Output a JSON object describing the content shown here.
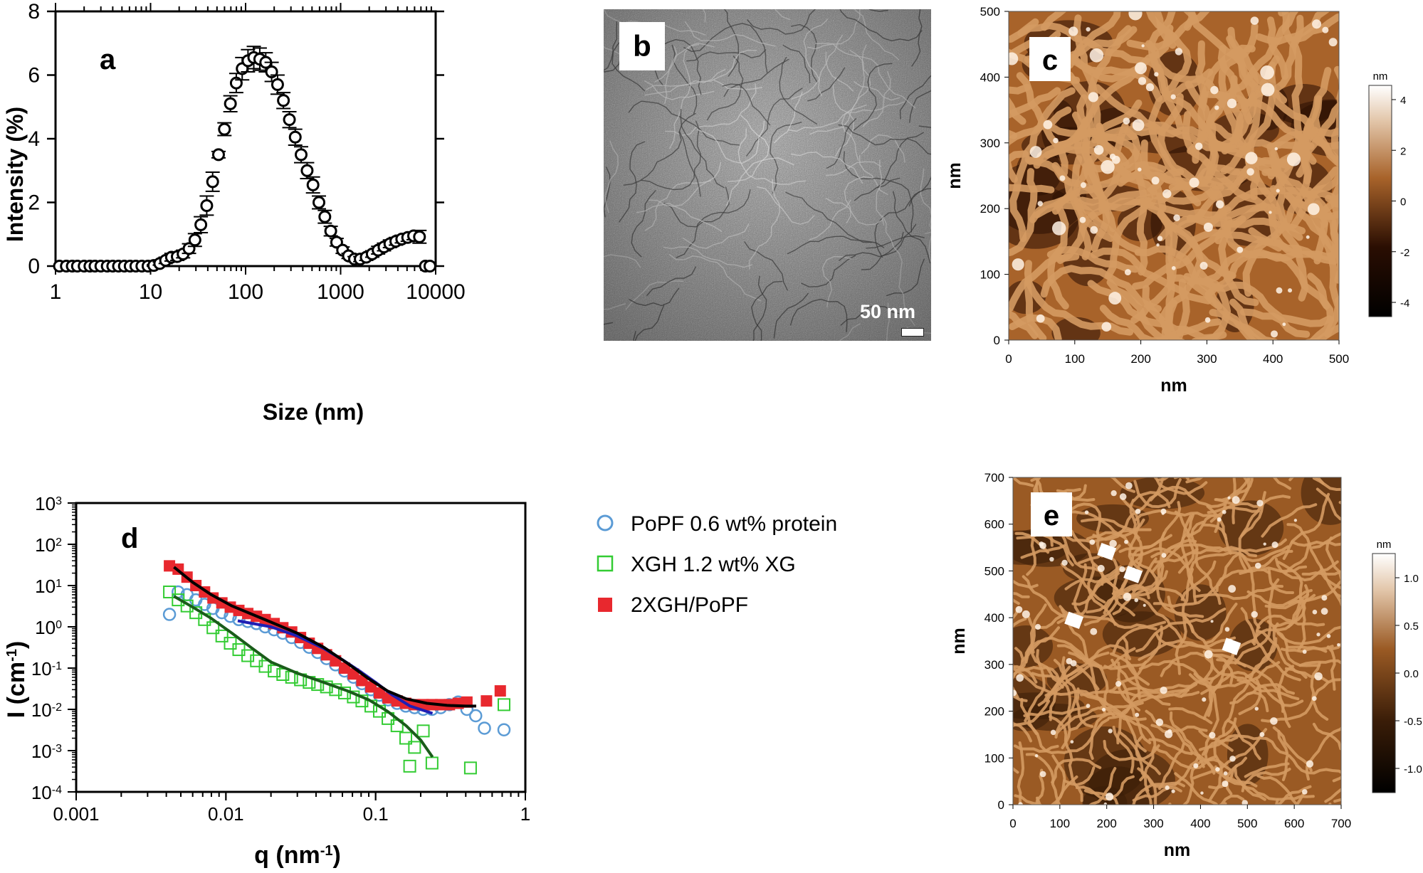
{
  "panels": {
    "a": {
      "letter": "a",
      "chart_data": {
        "type": "scatter",
        "title": "",
        "xlabel": "Size (nm)",
        "ylabel": "Intensity (%)",
        "xscale": "log",
        "xlim": [
          1,
          10000
        ],
        "ylim": [
          0,
          8
        ],
        "xticks": [
          "1",
          "10",
          "100",
          "1000",
          "10000"
        ],
        "yticks": [
          "0",
          "2",
          "4",
          "6",
          "8"
        ],
        "grid": false,
        "series": [
          {
            "marker": "open-circle",
            "color": "#000000",
            "error_bars": true,
            "x": [
              1.1,
              1.3,
              1.5,
              1.7,
              2.0,
              2.3,
              2.6,
              3.0,
              3.5,
              4.0,
              4.6,
              5.3,
              6.1,
              7.0,
              8.1,
              9.4,
              10.8,
              12.5,
              14.4,
              16.6,
              19.1,
              22,
              25.4,
              29.3,
              33.8,
              39,
              45,
              51.9,
              59.9,
              69.2,
              79.8,
              92.1,
              106,
              122,
              141,
              163,
              188,
              217,
              250,
              289,
              333,
              384,
              444,
              512,
              591,
              682,
              787,
              908,
              1050,
              1210,
              1400,
              1610,
              1860,
              2150,
              2480,
              2860,
              3300,
              3810,
              4400,
              5080,
              5860,
              6760,
              7800,
              8700
            ],
            "y": [
              0,
              0,
              0,
              0,
              0,
              0,
              0,
              0,
              0,
              0,
              0,
              0,
              0,
              0,
              0,
              0,
              0.02,
              0.08,
              0.18,
              0.28,
              0.3,
              0.38,
              0.55,
              0.82,
              1.3,
              1.9,
              2.65,
              3.5,
              4.3,
              5.1,
              5.75,
              6.2,
              6.45,
              6.55,
              6.5,
              6.4,
              6.1,
              5.7,
              5.2,
              4.6,
              4.05,
              3.5,
              3.0,
              2.55,
              2.0,
              1.55,
              1.1,
              0.75,
              0.5,
              0.32,
              0.22,
              0.22,
              0.28,
              0.38,
              0.5,
              0.6,
              0.7,
              0.78,
              0.85,
              0.9,
              0.95,
              0.92,
              0,
              0
            ],
            "yerr": [
              0,
              0,
              0,
              0,
              0,
              0,
              0,
              0,
              0,
              0,
              0,
              0,
              0,
              0,
              0,
              0,
              0.02,
              0.05,
              0.1,
              0.12,
              0.12,
              0.12,
              0.15,
              0.2,
              0.25,
              0.3,
              0.3,
              0.1,
              0.2,
              0.25,
              0.3,
              0.35,
              0.35,
              0.35,
              0.35,
              0.3,
              0.3,
              0.3,
              0.25,
              0.25,
              0.25,
              0.25,
              0.25,
              0.25,
              0.2,
              0.2,
              0.15,
              0.12,
              0.1,
              0.08,
              0.08,
              0.08,
              0.1,
              0.1,
              0.12,
              0.12,
              0.12,
              0.12,
              0.12,
              0.12,
              0.12,
              0.2,
              0,
              0
            ]
          }
        ]
      }
    },
    "b": {
      "letter": "b",
      "scale_label": "50 nm"
    },
    "c": {
      "letter": "c",
      "xlabel": "nm",
      "ylabel": "nm",
      "xticks": [
        "0",
        "100",
        "200",
        "300",
        "400",
        "500"
      ],
      "yticks": [
        "0",
        "100",
        "200",
        "300",
        "400",
        "500"
      ],
      "colorbar_unit": "nm",
      "colorbar_ticks": [
        "4",
        "2",
        "0",
        "-2",
        "-4"
      ],
      "colors": {
        "dark": "#2a0e02",
        "mid": "#a8632a",
        "light": "#ffffff"
      }
    },
    "d": {
      "letter": "d",
      "chart_data": {
        "type": "scatter",
        "title": "",
        "xlabel": "q (nm",
        "xlabel_sup": "-1",
        "xlabel_end": ")",
        "ylabel": "I (cm",
        "ylabel_sup": "-1",
        "ylabel_end": ")",
        "xscale": "log",
        "yscale": "log",
        "xlim": [
          0.001,
          1
        ],
        "ylim": [
          0.0001,
          1000
        ],
        "xticks": [
          "0.001",
          "0.01",
          "0.1",
          "1"
        ],
        "yticks": [
          {
            "base": "10",
            "exp": "-4"
          },
          {
            "base": "10",
            "exp": "-3"
          },
          {
            "base": "10",
            "exp": "-2"
          },
          {
            "base": "10",
            "exp": "-1"
          },
          {
            "base": "10",
            "exp": "0"
          },
          {
            "base": "10",
            "exp": "1"
          },
          {
            "base": "10",
            "exp": "2"
          },
          {
            "base": "10",
            "exp": "3"
          }
        ],
        "legend_position": "right-outside",
        "series": [
          {
            "name": "PoPF 0.6 wt% protein",
            "marker": "open-circle",
            "color": "#5b9bd5",
            "fit_color": "#1f1fb4",
            "x": [
              0.0042,
              0.0048,
              0.0055,
              0.0063,
              0.0072,
              0.0082,
              0.0094,
              0.0107,
              0.0122,
              0.014,
              0.016,
              0.0183,
              0.021,
              0.024,
              0.0275,
              0.0315,
              0.036,
              0.041,
              0.047,
              0.054,
              0.062,
              0.071,
              0.081,
              0.093,
              0.106,
              0.121,
              0.139,
              0.159,
              0.182,
              0.208,
              0.238,
              0.272,
              0.311,
              0.356,
              0.407,
              0.466,
              0.533,
              0.72
            ],
            "y": [
              2.0,
              7.0,
              6.0,
              4.5,
              3.5,
              2.8,
              2.2,
              1.8,
              1.5,
              1.35,
              1.2,
              1.0,
              0.85,
              0.7,
              0.55,
              0.42,
              0.32,
              0.24,
              0.17,
              0.12,
              0.085,
              0.06,
              0.042,
              0.03,
              0.022,
              0.017,
              0.014,
              0.012,
              0.011,
              0.01,
              0.01,
              0.011,
              0.013,
              0.015,
              0.01,
              0.007,
              0.0035,
              0.0032
            ],
            "fit_x": [
              0.012,
              0.02,
              0.03,
              0.045,
              0.06,
              0.08,
              0.1,
              0.13,
              0.17,
              0.24
            ],
            "fit_y": [
              1.4,
              1.0,
              0.6,
              0.3,
              0.16,
              0.08,
              0.045,
              0.022,
              0.012,
              0.008
            ]
          },
          {
            "name": "XGH 1.2 wt% XG",
            "marker": "open-square",
            "color": "#33cc33",
            "fit_color": "#1a5c1a",
            "x": [
              0.0042,
              0.0048,
              0.0055,
              0.0063,
              0.0072,
              0.0082,
              0.0094,
              0.0107,
              0.0122,
              0.014,
              0.016,
              0.0183,
              0.021,
              0.024,
              0.0275,
              0.0315,
              0.036,
              0.041,
              0.047,
              0.054,
              0.062,
              0.071,
              0.081,
              0.093,
              0.106,
              0.121,
              0.139,
              0.159,
              0.169,
              0.182,
              0.208,
              0.238,
              0.43,
              0.72
            ],
            "y": [
              7.0,
              4.5,
              3.2,
              2.2,
              1.5,
              0.95,
              0.6,
              0.4,
              0.28,
              0.2,
              0.15,
              0.11,
              0.085,
              0.07,
              0.06,
              0.052,
              0.045,
              0.04,
              0.035,
              0.03,
              0.025,
              0.02,
              0.016,
              0.012,
              0.009,
              0.006,
              0.004,
              0.002,
              0.00042,
              0.0012,
              0.003,
              0.0005,
              0.00038,
              0.013
            ],
            "fit_x": [
              0.0045,
              0.006,
              0.008,
              0.011,
              0.015,
              0.02,
              0.03,
              0.045,
              0.065,
              0.09,
              0.12,
              0.16,
              0.2,
              0.24
            ],
            "fit_y": [
              5.5,
              3.0,
              1.6,
              0.7,
              0.3,
              0.14,
              0.075,
              0.045,
              0.028,
              0.017,
              0.009,
              0.004,
              0.0018,
              0.0007
            ]
          },
          {
            "name": "2XGH/PoPF",
            "marker": "filled-square",
            "color": "#e8282e",
            "fit_color": "#000000",
            "x": [
              0.0042,
              0.0048,
              0.0055,
              0.0063,
              0.0072,
              0.0082,
              0.0094,
              0.0107,
              0.0122,
              0.014,
              0.016,
              0.0183,
              0.021,
              0.024,
              0.0275,
              0.0315,
              0.036,
              0.041,
              0.047,
              0.054,
              0.062,
              0.071,
              0.081,
              0.093,
              0.106,
              0.121,
              0.139,
              0.159,
              0.182,
              0.208,
              0.238,
              0.272,
              0.311,
              0.356,
              0.407,
              0.55,
              0.68
            ],
            "y": [
              30,
              25,
              16,
              10,
              7,
              5,
              3.8,
              3.0,
              2.5,
              2.1,
              1.8,
              1.5,
              1.2,
              0.95,
              0.75,
              0.55,
              0.4,
              0.3,
              0.21,
              0.15,
              0.1,
              0.072,
              0.05,
              0.035,
              0.025,
              0.019,
              0.016,
              0.014,
              0.013,
              0.013,
              0.013,
              0.013,
              0.013,
              0.014,
              0.015,
              0.016,
              0.028
            ],
            "fit_x": [
              0.0045,
              0.006,
              0.008,
              0.011,
              0.015,
              0.02,
              0.03,
              0.045,
              0.065,
              0.09,
              0.12,
              0.16,
              0.22,
              0.3,
              0.4,
              0.47
            ],
            "fit_y": [
              28,
              12,
              6,
              3.2,
              2.0,
              1.3,
              0.7,
              0.32,
              0.13,
              0.055,
              0.028,
              0.018,
              0.014,
              0.0125,
              0.012,
              0.012
            ]
          }
        ]
      }
    },
    "e": {
      "letter": "e",
      "xlabel": "nm",
      "ylabel": "nm",
      "xticks": [
        "0",
        "100",
        "200",
        "300",
        "400",
        "500",
        "600",
        "700"
      ],
      "yticks": [
        "0",
        "100",
        "200",
        "300",
        "400",
        "500",
        "600",
        "700"
      ],
      "colorbar_unit": "nm",
      "colorbar_ticks": [
        "1.0",
        "0.5",
        "0.0",
        "-0.5",
        "-1.0"
      ],
      "colors": {
        "dark": "#3a1d08",
        "mid": "#9a5a24",
        "light": "#ffffff"
      }
    }
  }
}
